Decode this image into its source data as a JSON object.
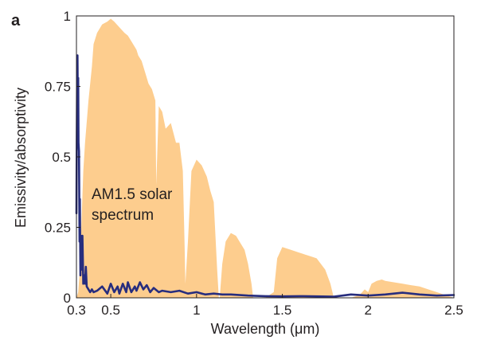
{
  "panel_label": "a",
  "chart_data": {
    "type": "area",
    "xlabel": "Wavelength (μm)",
    "ylabel": "Emissivity/absorptivity",
    "xlim": [
      0.3,
      2.5
    ],
    "ylim": [
      0,
      1
    ],
    "x_ticks": [
      0.3,
      0.5,
      1,
      1.5,
      2,
      2.5
    ],
    "x_tick_labels": [
      "0.3",
      "0.5",
      "1",
      "1.5",
      "2",
      "2.5"
    ],
    "y_ticks": [
      0,
      0.25,
      0.5,
      0.75,
      1
    ],
    "y_tick_labels": [
      "0",
      "0.25",
      "0.5",
      "0.75",
      "1"
    ],
    "grid": false,
    "annotation": [
      "AM1.5 solar",
      "spectrum"
    ],
    "series": [
      {
        "kind": "area",
        "color": "#fdcd8e",
        "x": [
          0.3,
          0.31,
          0.32,
          0.33,
          0.34,
          0.35,
          0.37,
          0.39,
          0.4,
          0.42,
          0.45,
          0.48,
          0.5,
          0.52,
          0.55,
          0.58,
          0.6,
          0.63,
          0.65,
          0.66,
          0.68,
          0.7,
          0.72,
          0.74,
          0.76,
          0.765,
          0.78,
          0.8,
          0.82,
          0.85,
          0.88,
          0.9,
          0.92,
          0.93,
          0.935,
          0.95,
          0.97,
          1.0,
          1.03,
          1.06,
          1.08,
          1.1,
          1.12,
          1.13,
          1.135,
          1.15,
          1.17,
          1.2,
          1.23,
          1.25,
          1.28,
          1.3,
          1.32,
          1.33,
          1.35,
          1.4,
          1.45,
          1.47,
          1.5,
          1.55,
          1.6,
          1.65,
          1.7,
          1.75,
          1.78,
          1.8,
          1.85,
          1.9,
          1.95,
          1.98,
          2.0,
          2.02,
          2.05,
          2.08,
          2.1,
          2.15,
          2.2,
          2.25,
          2.3,
          2.35,
          2.4,
          2.45,
          2.5
        ],
        "y": [
          0.0,
          0.02,
          0.1,
          0.28,
          0.45,
          0.55,
          0.7,
          0.82,
          0.9,
          0.94,
          0.97,
          0.98,
          0.99,
          0.98,
          0.96,
          0.94,
          0.93,
          0.9,
          0.88,
          0.86,
          0.84,
          0.8,
          0.76,
          0.74,
          0.7,
          0.4,
          0.68,
          0.66,
          0.6,
          0.62,
          0.55,
          0.55,
          0.45,
          0.2,
          0.05,
          0.2,
          0.45,
          0.49,
          0.47,
          0.43,
          0.38,
          0.34,
          0.1,
          0.0,
          0.0,
          0.12,
          0.2,
          0.23,
          0.22,
          0.2,
          0.17,
          0.12,
          0.05,
          0.0,
          0.0,
          0.0,
          0.02,
          0.14,
          0.18,
          0.17,
          0.16,
          0.15,
          0.14,
          0.1,
          0.05,
          0.0,
          0.0,
          0.0,
          0.01,
          0.03,
          0.02,
          0.05,
          0.06,
          0.065,
          0.06,
          0.055,
          0.05,
          0.045,
          0.04,
          0.03,
          0.02,
          0.01,
          0.0
        ]
      },
      {
        "kind": "line",
        "color": "#272d7e",
        "x": [
          0.3,
          0.302,
          0.304,
          0.306,
          0.308,
          0.31,
          0.312,
          0.315,
          0.318,
          0.32,
          0.323,
          0.326,
          0.33,
          0.335,
          0.34,
          0.345,
          0.35,
          0.355,
          0.36,
          0.37,
          0.38,
          0.39,
          0.4,
          0.42,
          0.45,
          0.48,
          0.5,
          0.52,
          0.54,
          0.55,
          0.57,
          0.59,
          0.6,
          0.62,
          0.64,
          0.65,
          0.67,
          0.69,
          0.71,
          0.73,
          0.75,
          0.78,
          0.8,
          0.85,
          0.9,
          0.95,
          1.0,
          1.05,
          1.1,
          1.15,
          1.2,
          1.3,
          1.4,
          1.5,
          1.6,
          1.7,
          1.8,
          1.9,
          2.0,
          2.1,
          2.2,
          2.3,
          2.4,
          2.5
        ],
        "y": [
          0.3,
          0.55,
          0.8,
          0.86,
          0.7,
          0.78,
          0.55,
          0.52,
          0.2,
          0.35,
          0.08,
          0.22,
          0.1,
          0.22,
          0.05,
          0.08,
          0.05,
          0.11,
          0.04,
          0.03,
          0.02,
          0.03,
          0.02,
          0.025,
          0.04,
          0.015,
          0.05,
          0.02,
          0.04,
          0.015,
          0.05,
          0.02,
          0.055,
          0.02,
          0.04,
          0.025,
          0.055,
          0.03,
          0.045,
          0.02,
          0.035,
          0.02,
          0.025,
          0.02,
          0.025,
          0.015,
          0.02,
          0.012,
          0.015,
          0.012,
          0.012,
          0.008,
          0.006,
          0.005,
          0.006,
          0.005,
          0.004,
          0.012,
          0.008,
          0.012,
          0.018,
          0.012,
          0.008,
          0.01
        ]
      }
    ]
  }
}
